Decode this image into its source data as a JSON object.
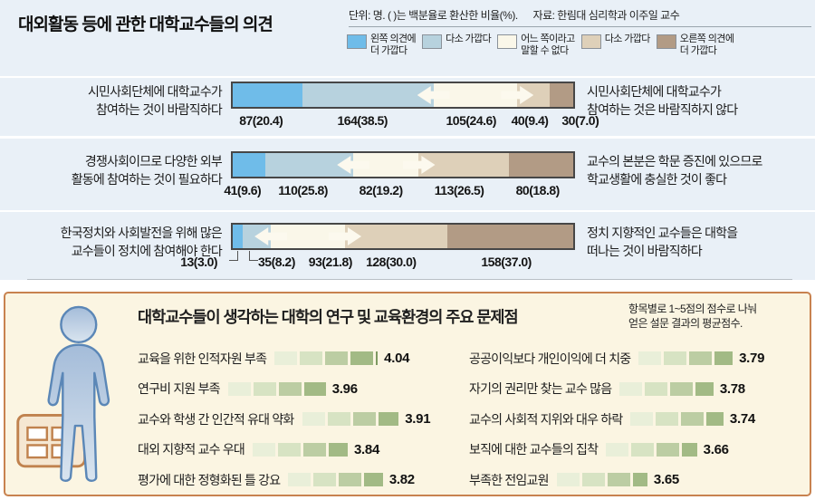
{
  "chart_data": [
    {
      "type": "bar",
      "variant": "stacked-horizontal-opinion-scale",
      "title": "대외활동 등에 관한 대학교수들의 의견",
      "unit_note": "단위: 명. ( )는 백분율로 환산한 비율(%).",
      "source": "자료: 한림대 심리학과 이주일 교수",
      "legend": [
        "왼쪽 의견에\n더 가깝다",
        "다소 가깝다",
        "어느 쪽이라고\n말할 수 없다",
        "다소 가깝다",
        "오른쪽 의견에\n더 가깝다"
      ],
      "rows": [
        {
          "left_statement": "시민사회단체에 대학교수가\n참여하는 것이 바람직하다",
          "right_statement": "시민사회단체에 대학교수가\n참여하는 것은 바람직하지 않다",
          "counts": [
            87,
            164,
            105,
            40,
            30
          ],
          "percents": [
            20.4,
            38.5,
            24.6,
            9.4,
            7.0
          ]
        },
        {
          "left_statement": "경쟁사회이므로 다양한 외부\n활동에 참여하는 것이 필요하다",
          "right_statement": "교수의 본분은 학문 증진에 있으므로\n학교생활에 충실한 것이 좋다",
          "counts": [
            41,
            110,
            82,
            113,
            80
          ],
          "percents": [
            9.6,
            25.8,
            19.2,
            26.5,
            18.8
          ]
        },
        {
          "left_statement": "한국정치와 사회발전을 위해 많은\n교수들이 정치에 참여해야 한다",
          "right_statement": "정치 지향적인 교수들은 대학을\n떠나는 것이 바람직하다",
          "counts": [
            13,
            35,
            93,
            128,
            158
          ],
          "percents": [
            3.0,
            8.2,
            21.8,
            30.0,
            37.0
          ]
        }
      ]
    },
    {
      "type": "bar",
      "title": "대학교수들이 생각하는 대학의 연구 및 교육환경의 주요 문제점",
      "note": "항목별로 1~5점의 점수로 나눠\n얻은 설문 결과의 평균점수.",
      "value_range": [
        1,
        5
      ],
      "categories": [
        "교육을 위한 인적자원 부족",
        "연구비 지원 부족",
        "교수와 학생 간 인간적 유대 약화",
        "대외 지향적 교수 우대",
        "평가에 대한 정형화된 틀 강요",
        "공공이익보다 개인이익에 더 치중",
        "자기의 권리만 찾는 교수 많음",
        "교수의 사회적 지위와 대우 하락",
        "보직에 대한 교수들의 집착",
        "부족한 전임교원"
      ],
      "values": [
        4.04,
        3.96,
        3.91,
        3.84,
        3.82,
        3.79,
        3.78,
        3.74,
        3.66,
        3.65
      ],
      "columns_split": 5
    }
  ],
  "style": {
    "top_background": "#e9f0f7",
    "segment_colors": [
      "#6fbce9",
      "#b7d2de",
      "#faf7e9",
      "#ded0b9",
      "#b29b85"
    ],
    "bar_border": "#474747",
    "arrow_color": "#fcf9ee",
    "score_segment_colors": [
      "#e9efd9",
      "#d7e3c3",
      "#bccda3",
      "#a2ba85",
      "#7e9a61"
    ],
    "panel_background": "#fbf5e2",
    "panel_border": "#c8824f",
    "person_fill_top": "#a4bcd9",
    "person_fill_bottom": "#d9e4ef",
    "person_stroke": "#5b87b7",
    "briefcase_fill": "#f5e7d2",
    "briefcase_stroke": "#c0824e"
  }
}
